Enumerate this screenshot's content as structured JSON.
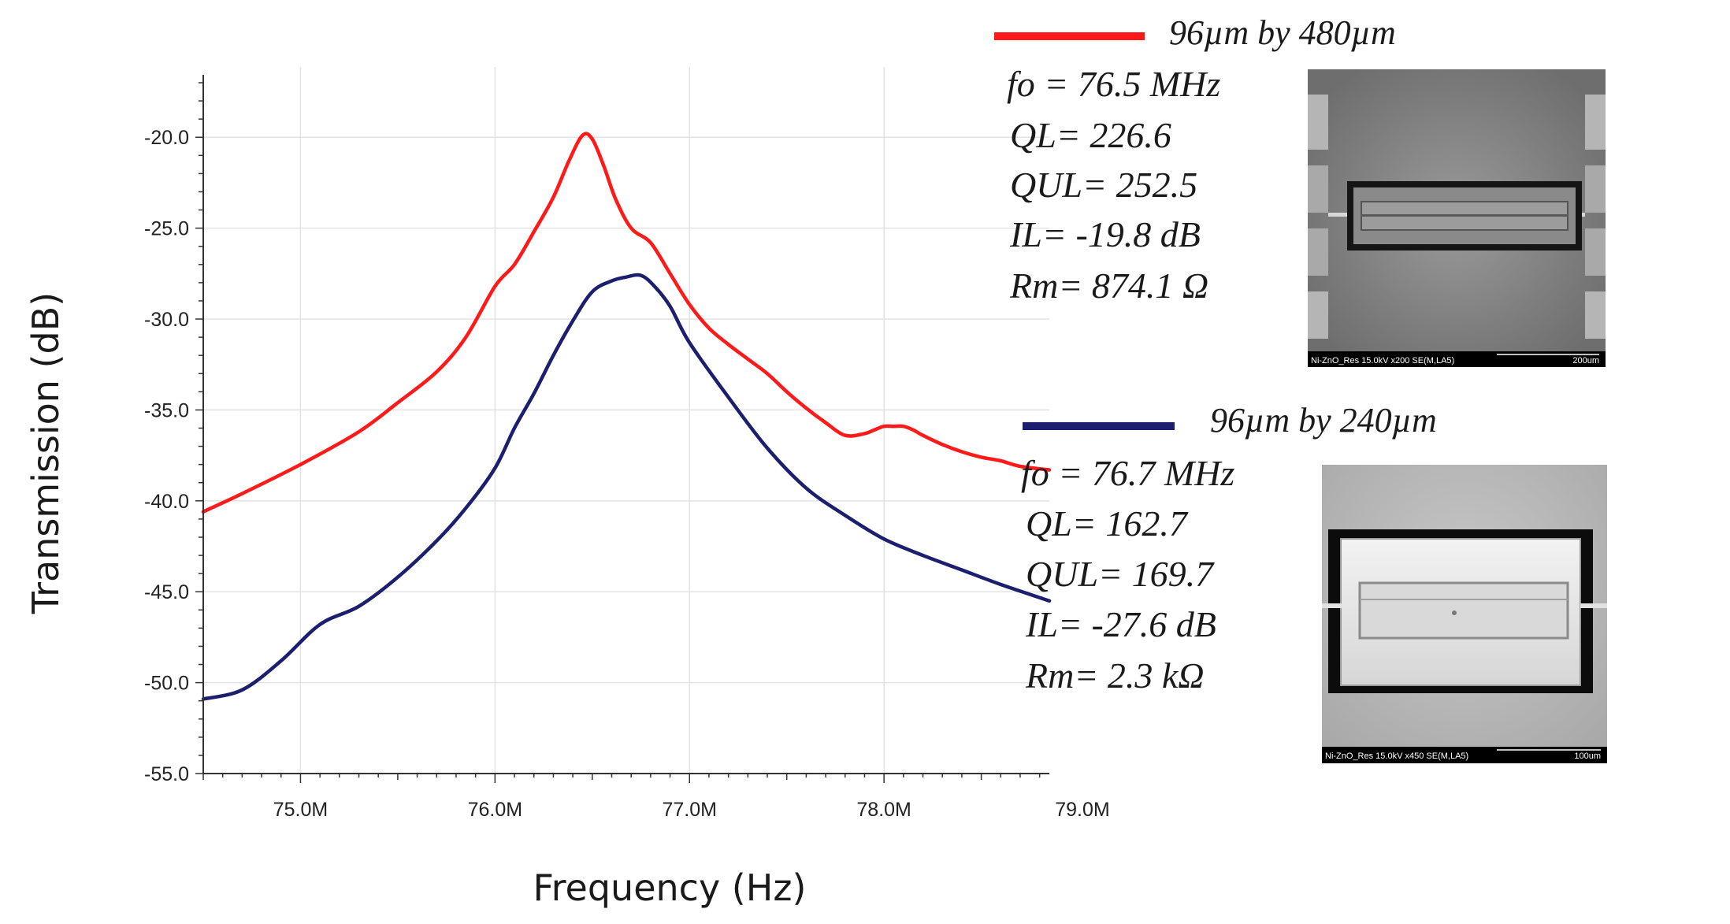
{
  "chart_data": {
    "type": "line",
    "xlabel": "Frequency (Hz)",
    "ylabel": "Transmission (dB)",
    "xlim": [
      74.5,
      78.85
    ],
    "ylim": [
      -55.0,
      -17.0
    ],
    "x_ticks": [
      75.0,
      76.0,
      77.0,
      78.0,
      79.0
    ],
    "x_tick_labels": [
      "75.0M",
      "76.0M",
      "77.0M",
      "78.0M",
      "79.0M"
    ],
    "y_ticks": [
      -20.0,
      -25.0,
      -30.0,
      -35.0,
      -40.0,
      -45.0,
      -50.0,
      -55.0
    ],
    "y_tick_labels": [
      "-20.0",
      "-25.0",
      "-30.0",
      "-35.0",
      "-40.0",
      "-45.0",
      "-50.0",
      "-55.0"
    ],
    "grid": true,
    "series": [
      {
        "name": "96µm by 480µm",
        "color": "#ff1a1a",
        "x": [
          74.5,
          74.7,
          75.0,
          75.3,
          75.5,
          75.7,
          75.85,
          76.0,
          76.1,
          76.2,
          76.3,
          76.38,
          76.45,
          76.5,
          76.56,
          76.62,
          76.7,
          76.8,
          76.9,
          77.0,
          77.1,
          77.2,
          77.3,
          77.4,
          77.5,
          77.6,
          77.7,
          77.8,
          77.9,
          77.95,
          78.0,
          78.05,
          78.1,
          78.15,
          78.2,
          78.3,
          78.4,
          78.5,
          78.6,
          78.7,
          78.85
        ],
        "values": [
          -40.6,
          -39.6,
          -38.0,
          -36.2,
          -34.6,
          -32.9,
          -31.0,
          -28.2,
          -27.0,
          -25.2,
          -23.3,
          -21.3,
          -19.9,
          -20.1,
          -21.6,
          -23.4,
          -25.0,
          -25.8,
          -27.5,
          -29.2,
          -30.5,
          -31.4,
          -32.2,
          -33.0,
          -34.0,
          -34.9,
          -35.7,
          -36.4,
          -36.3,
          -36.1,
          -35.9,
          -35.9,
          -35.9,
          -36.1,
          -36.4,
          -36.9,
          -37.3,
          -37.6,
          -37.8,
          -38.1,
          -38.3
        ]
      },
      {
        "name": "96µm by 240µm",
        "color": "#1c1f6e",
        "x": [
          74.5,
          74.7,
          74.9,
          75.1,
          75.3,
          75.5,
          75.7,
          75.85,
          76.0,
          76.1,
          76.2,
          76.3,
          76.4,
          76.5,
          76.6,
          76.67,
          76.75,
          76.82,
          76.9,
          77.0,
          77.2,
          77.4,
          77.6,
          77.8,
          78.0,
          78.2,
          78.4,
          78.6,
          78.85
        ],
        "values": [
          -50.9,
          -50.4,
          -48.8,
          -46.8,
          -45.8,
          -44.2,
          -42.2,
          -40.4,
          -38.2,
          -36.0,
          -34.1,
          -32.0,
          -30.1,
          -28.5,
          -27.9,
          -27.7,
          -27.6,
          -28.2,
          -29.3,
          -31.3,
          -34.3,
          -37.1,
          -39.3,
          -40.8,
          -42.1,
          -43.0,
          -43.8,
          -44.6,
          -45.5
        ]
      }
    ]
  },
  "legend": [
    {
      "title": "96µm by 480µm",
      "params": [
        "fo = 76.5 MHz",
        "QL= 226.6",
        "QUL= 252.5",
        "IL= -19.8 dB",
        "Rm= 874.1 Ω"
      ]
    },
    {
      "title": "96µm by 240µm",
      "params": [
        "fo = 76.7 MHz",
        "QL= 162.7",
        "QUL= 169.7",
        "IL= -27.6 dB",
        "Rm=  2.3 kΩ"
      ]
    }
  ],
  "sem_images": [
    {
      "info_bar": "Ni-ZnO_Res 15.0kV x200 SE(M,LA5)",
      "scale": "200um"
    },
    {
      "info_bar": "Ni-ZnO_Res 15.0kV x450 SE(M,LA5)",
      "scale": "100um"
    }
  ]
}
